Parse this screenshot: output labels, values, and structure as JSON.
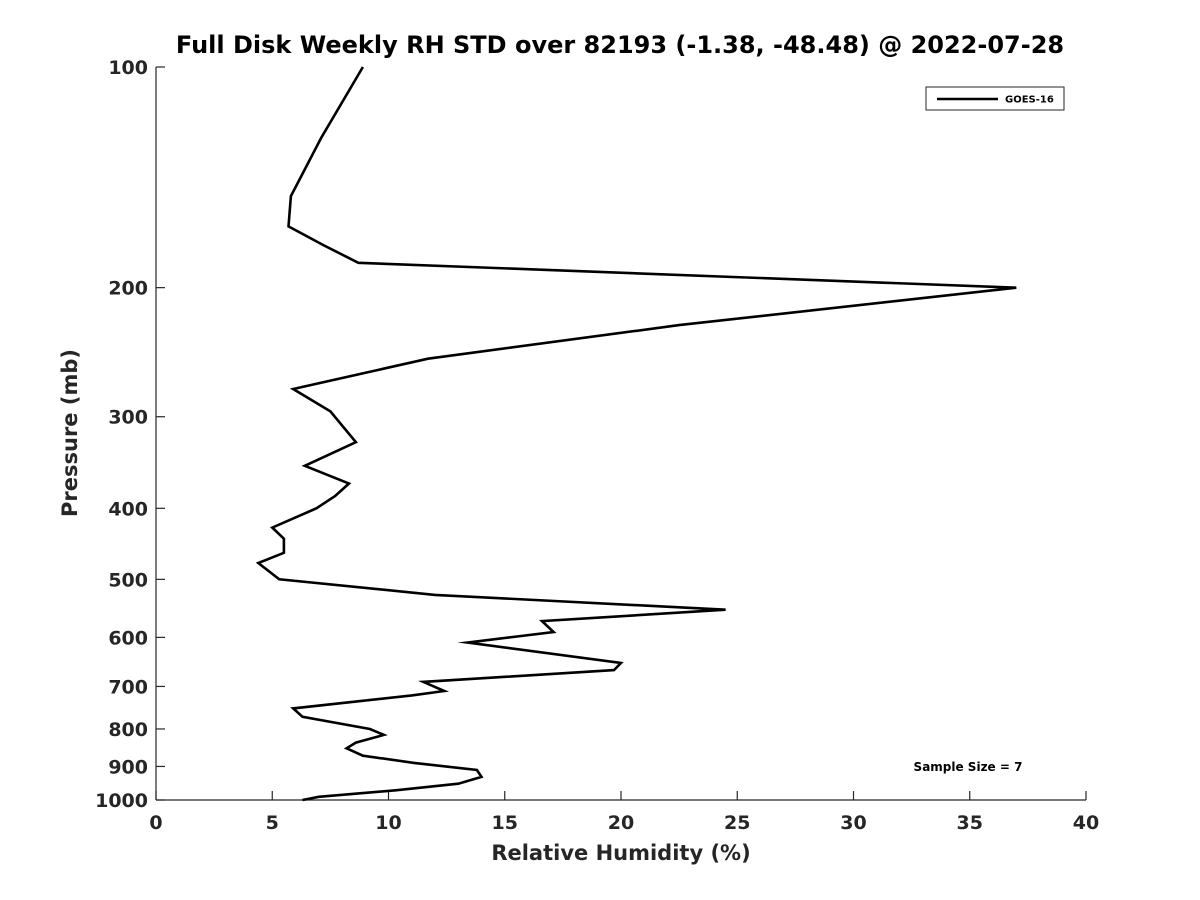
{
  "chart_data": {
    "type": "line",
    "title": "Full Disk Weekly RH STD over 82193 (-1.38, -48.48) @ 2022-07-28",
    "xlabel": "Relative Humidity (%)",
    "ylabel": "Pressure (mb)",
    "xlim": [
      0,
      40
    ],
    "ylim": [
      100,
      1000
    ],
    "y_scale": "log",
    "y_reversed": true,
    "grid": false,
    "legend_position": "top-right",
    "x_ticks": [
      "0",
      "5",
      "10",
      "15",
      "20",
      "25",
      "30",
      "35",
      "40"
    ],
    "y_ticks": [
      "100",
      "200",
      "300",
      "400",
      "500",
      "600",
      "700",
      "800",
      "900",
      "1000"
    ],
    "annotation": "Sample Size = 7",
    "series": [
      {
        "name": "GOES-16",
        "color": "#000000",
        "x": [
          8.9,
          7.1,
          5.8,
          5.7,
          7.2,
          8.7,
          37.0,
          22.5,
          11.7,
          5.9,
          7.5,
          8.6,
          6.4,
          8.3,
          7.7,
          6.9,
          5.0,
          5.5,
          5.5,
          4.4,
          5.3,
          12.0,
          24.5,
          16.6,
          17.1,
          13.4,
          20.0,
          19.7,
          11.5,
          12.4,
          11.0,
          5.9,
          6.3,
          9.2,
          9.8,
          8.6,
          8.2,
          8.9,
          11.1,
          13.8,
          14.0,
          13.0,
          10.3,
          7.0,
          6.3
        ],
        "y": [
          100,
          125,
          150,
          165,
          175,
          185,
          200,
          225,
          250,
          275,
          295,
          325,
          350,
          370,
          385,
          400,
          425,
          440,
          460,
          475,
          500,
          525,
          550,
          570,
          590,
          610,
          650,
          665,
          690,
          710,
          720,
          750,
          770,
          800,
          815,
          835,
          850,
          870,
          890,
          910,
          930,
          950,
          970,
          990,
          1000
        ]
      }
    ]
  }
}
